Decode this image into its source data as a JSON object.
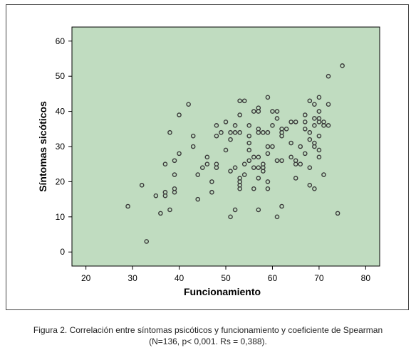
{
  "caption": {
    "line1": "Figura 2.  Correlación entre síntomas psicóticos y funcionamiento y coeficiente de Spearman",
    "line2": "(N=136, p< 0,001. Rs = 0,388)."
  },
  "colors": {
    "plot_background": "#c0dcc0",
    "point_stroke": "#3a3a3a",
    "axis": "#000000"
  },
  "chart_data": {
    "type": "scatter",
    "xlabel": "Funcionamiento",
    "ylabel": "Síntomas sicóticos",
    "xlim": [
      17,
      83
    ],
    "ylim": [
      -4,
      64
    ],
    "xticks": [
      20,
      30,
      40,
      50,
      60,
      70,
      80
    ],
    "yticks": [
      0,
      10,
      20,
      30,
      40,
      50,
      60
    ],
    "grid": false,
    "legend": "none",
    "points": [
      [
        29,
        13
      ],
      [
        32,
        19
      ],
      [
        33,
        3
      ],
      [
        35,
        16
      ],
      [
        36,
        11
      ],
      [
        37,
        16
      ],
      [
        37,
        17
      ],
      [
        37,
        25
      ],
      [
        38,
        12
      ],
      [
        38,
        34
      ],
      [
        39,
        17
      ],
      [
        39,
        18
      ],
      [
        39,
        22
      ],
      [
        39,
        26
      ],
      [
        40,
        28
      ],
      [
        40,
        39
      ],
      [
        42,
        42
      ],
      [
        43,
        30
      ],
      [
        43,
        33
      ],
      [
        44,
        22
      ],
      [
        44,
        15
      ],
      [
        45,
        24
      ],
      [
        46,
        25
      ],
      [
        46,
        27
      ],
      [
        47,
        17
      ],
      [
        47,
        20
      ],
      [
        48,
        33
      ],
      [
        48,
        36
      ],
      [
        48,
        24
      ],
      [
        48,
        25
      ],
      [
        49,
        34
      ],
      [
        50,
        29
      ],
      [
        50,
        37
      ],
      [
        51,
        10
      ],
      [
        51,
        23
      ],
      [
        51,
        32
      ],
      [
        51,
        34
      ],
      [
        52,
        12
      ],
      [
        52,
        24
      ],
      [
        52,
        34
      ],
      [
        52,
        36
      ],
      [
        53,
        18
      ],
      [
        53,
        19
      ],
      [
        53,
        20
      ],
      [
        53,
        21
      ],
      [
        53,
        34
      ],
      [
        53,
        39
      ],
      [
        53,
        43
      ],
      [
        54,
        22
      ],
      [
        54,
        43
      ],
      [
        54,
        25
      ],
      [
        55,
        26
      ],
      [
        55,
        29
      ],
      [
        55,
        31
      ],
      [
        55,
        33
      ],
      [
        55,
        36
      ],
      [
        56,
        18
      ],
      [
        56,
        24
      ],
      [
        56,
        27
      ],
      [
        56,
        40
      ],
      [
        57,
        12
      ],
      [
        57,
        21
      ],
      [
        57,
        24
      ],
      [
        57,
        27
      ],
      [
        57,
        34
      ],
      [
        57,
        35
      ],
      [
        57,
        40
      ],
      [
        57,
        41
      ],
      [
        58,
        23
      ],
      [
        58,
        24
      ],
      [
        58,
        25
      ],
      [
        58,
        34
      ],
      [
        59,
        18
      ],
      [
        59,
        20
      ],
      [
        59,
        28
      ],
      [
        59,
        30
      ],
      [
        59,
        34
      ],
      [
        59,
        44
      ],
      [
        60,
        30
      ],
      [
        60,
        36
      ],
      [
        60,
        40
      ],
      [
        61,
        10
      ],
      [
        61,
        26
      ],
      [
        61,
        38
      ],
      [
        61,
        40
      ],
      [
        62,
        13
      ],
      [
        62,
        26
      ],
      [
        62,
        33
      ],
      [
        62,
        34
      ],
      [
        62,
        35
      ],
      [
        63,
        35
      ],
      [
        64,
        27
      ],
      [
        64,
        31
      ],
      [
        64,
        37
      ],
      [
        65,
        21
      ],
      [
        65,
        25
      ],
      [
        65,
        26
      ],
      [
        65,
        37
      ],
      [
        66,
        25
      ],
      [
        66,
        30
      ],
      [
        67,
        28
      ],
      [
        67,
        35
      ],
      [
        67,
        37
      ],
      [
        67,
        39
      ],
      [
        68,
        19
      ],
      [
        68,
        24
      ],
      [
        68,
        32
      ],
      [
        68,
        34
      ],
      [
        68,
        43
      ],
      [
        69,
        18
      ],
      [
        69,
        30
      ],
      [
        69,
        31
      ],
      [
        69,
        36
      ],
      [
        69,
        38
      ],
      [
        69,
        42
      ],
      [
        70,
        27
      ],
      [
        70,
        29
      ],
      [
        70,
        33
      ],
      [
        70,
        37
      ],
      [
        70,
        38
      ],
      [
        70,
        40
      ],
      [
        70,
        44
      ],
      [
        71,
        22
      ],
      [
        71,
        36
      ],
      [
        71,
        37
      ],
      [
        72,
        42
      ],
      [
        72,
        36
      ],
      [
        72,
        50
      ],
      [
        74,
        11
      ],
      [
        75,
        53
      ]
    ]
  }
}
